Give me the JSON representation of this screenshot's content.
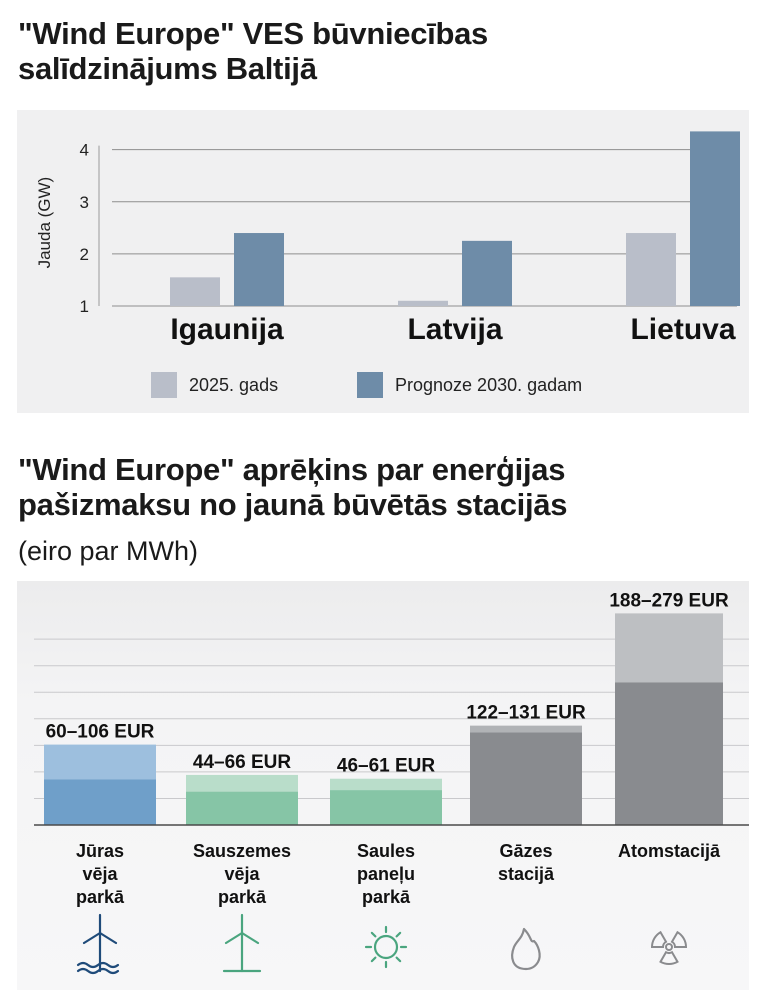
{
  "colors": {
    "bar_2025": "#b9bec9",
    "bar_2030": "#6e8ca8",
    "offshore_low": "#6f9fc9",
    "offshore_high": "#9dbfde",
    "onshore_low": "#86c5a6",
    "onshore_high": "#b9ddca",
    "solar_low": "#86c5a6",
    "solar_high": "#b9ddca",
    "gas_low": "#898b8f",
    "gas_high": "#b1b3b6",
    "nuclear_low": "#898b8f",
    "nuclear_high": "#bdbfc2",
    "icon_offshore": "#1f4b7a",
    "icon_green": "#4aa57f",
    "icon_grey": "#8a8b8e"
  },
  "chart_data": [
    {
      "type": "bar",
      "title": "\"Wind Europe\" VES būvniecības salīdzinājums Baltijā",
      "ylabel": "Jauda (GW)",
      "xlabel": "",
      "ylim": [
        1,
        4.3
      ],
      "yticks": [
        1,
        2,
        3,
        4
      ],
      "grid": true,
      "legend_position": "bottom",
      "categories": [
        "Igaunija",
        "Latvija",
        "Lietuva"
      ],
      "series": [
        {
          "name": "2025. gads",
          "values": [
            1.55,
            1.1,
            2.4
          ]
        },
        {
          "name": "Prognoze 2030. gadam",
          "values": [
            2.4,
            2.25,
            4.35
          ]
        }
      ]
    },
    {
      "type": "bar",
      "title": "\"Wind Europe\" aprēķins par enerģijas pašizmaksu no jaunā būvētās stacijās",
      "subtitle": "(eiro par MWh)",
      "ylabel": "",
      "xlabel": "",
      "ylim": [
        0,
        280
      ],
      "grid": true,
      "categories": [
        "Jūras vēja parkā",
        "Sauszemes vēja parkā",
        "Saules paneļu parkā",
        "Gāzes stacijā",
        "Atomstacijā"
      ],
      "category_lines": [
        [
          "Jūras",
          "vēja",
          "parkā"
        ],
        [
          "Sauszemes",
          "vēja",
          "parkā"
        ],
        [
          "Saules",
          "paneļu",
          "parkā"
        ],
        [
          "Gāzes",
          "stacijā"
        ],
        [
          "Atomstacijā"
        ]
      ],
      "low": [
        60,
        44,
        46,
        122,
        188
      ],
      "high": [
        106,
        66,
        61,
        131,
        279
      ],
      "labels": [
        "60–106 EUR",
        "44–66 EUR",
        "46–61 EUR",
        "122–131 EUR",
        "188–279 EUR"
      ],
      "icons": [
        "offshore-wind-turbine-icon",
        "wind-turbine-icon",
        "sun-icon",
        "flame-icon",
        "radiation-icon"
      ]
    }
  ]
}
